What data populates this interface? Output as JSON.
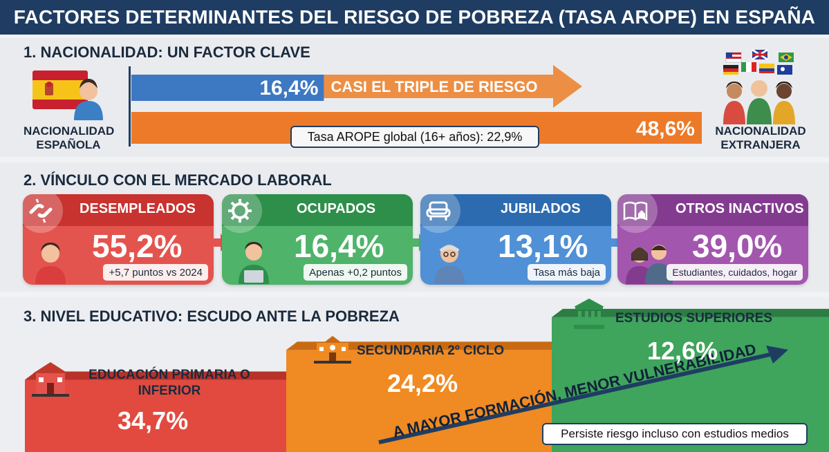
{
  "title": "FACTORES DETERMINANTES DEL RIESGO DE POBREZA (TASA AROPE) EN ESPAÑA",
  "section1": {
    "title": "1. NACIONALIDAD: UN FACTOR CLAVE",
    "left_label": "NACIONALIDAD ESPAÑOLA",
    "right_label": "NACIONALIDAD EXTRANJERA",
    "arrow_text": "CASI EL TRIPLE DE RIESGO",
    "global_note": "Tasa AROPE global (16+ años): 22,9%",
    "colors": {
      "spanish": "#3d78c2",
      "foreign": "#ec7a28"
    }
  },
  "section2": {
    "title": "2. VÍNCULO CON EL MERCADO LABORAL",
    "cards": [
      {
        "label": "DESEMPLEADOS",
        "value": "55,2%",
        "note": "+5,7 puntos vs 2024",
        "color": "#d93d3d",
        "icon": "broken-chain-icon"
      },
      {
        "label": "OCUPADOS",
        "value": "16,4%",
        "note": "Apenas +0,2 puntos",
        "color": "#3aa35a",
        "icon": "gear-wrench-icon"
      },
      {
        "label": "JUBILADOS",
        "value": "13,1%",
        "note": "Tasa más baja",
        "color": "#3d7fc6",
        "icon": "armchair-icon"
      },
      {
        "label": "OTROS INACTIVOS",
        "value": "39,0%",
        "note": "Estudiantes, cuidados, hogar",
        "color": "#9a4ba6",
        "icon": "book-house-icon"
      }
    ]
  },
  "section3": {
    "title": "3. NIVEL EDUCATIVO: ESCUDO ANTE LA POBREZA",
    "trend_text": "A MAYOR FORMACIÓN, MENOR VULNERABILIDAD",
    "footnote": "Persiste riesgo incluso con estudios medios",
    "colors": {
      "primaria": "#e24a3f",
      "secundaria": "#f08a22",
      "superiores": "#3fa45c"
    }
  },
  "chart_data": [
    {
      "type": "bar",
      "title": "1. NACIONALIDAD: UN FACTOR CLAVE",
      "categories": [
        "NACIONALIDAD ESPAÑOLA",
        "NACIONALIDAD EXTRANJERA"
      ],
      "values": [
        16.4,
        48.6
      ],
      "value_labels": [
        "16,4%",
        "48,6%"
      ],
      "unit": "%",
      "reference": {
        "label": "Tasa AROPE global (16+ años): 22,9%",
        "value": 22.9
      }
    },
    {
      "type": "bar",
      "title": "2. VÍNCULO CON EL MERCADO LABORAL",
      "categories": [
        "DESEMPLEADOS",
        "OCUPADOS",
        "JUBILADOS",
        "OTROS INACTIVOS"
      ],
      "values": [
        55.2,
        16.4,
        13.1,
        39.0
      ],
      "unit": "%"
    },
    {
      "type": "bar",
      "title": "3. NIVEL EDUCATIVO: ESCUDO ANTE LA POBREZA",
      "categories": [
        "EDUCACIÓN PRIMARIA O INFERIOR",
        "SECUNDARIA 2º CICLO",
        "ESTUDIOS SUPERIORES"
      ],
      "values": [
        34.7,
        24.2,
        12.6
      ],
      "value_labels": [
        "34,7%",
        "24,2%",
        "12,6%"
      ],
      "unit": "%"
    }
  ]
}
